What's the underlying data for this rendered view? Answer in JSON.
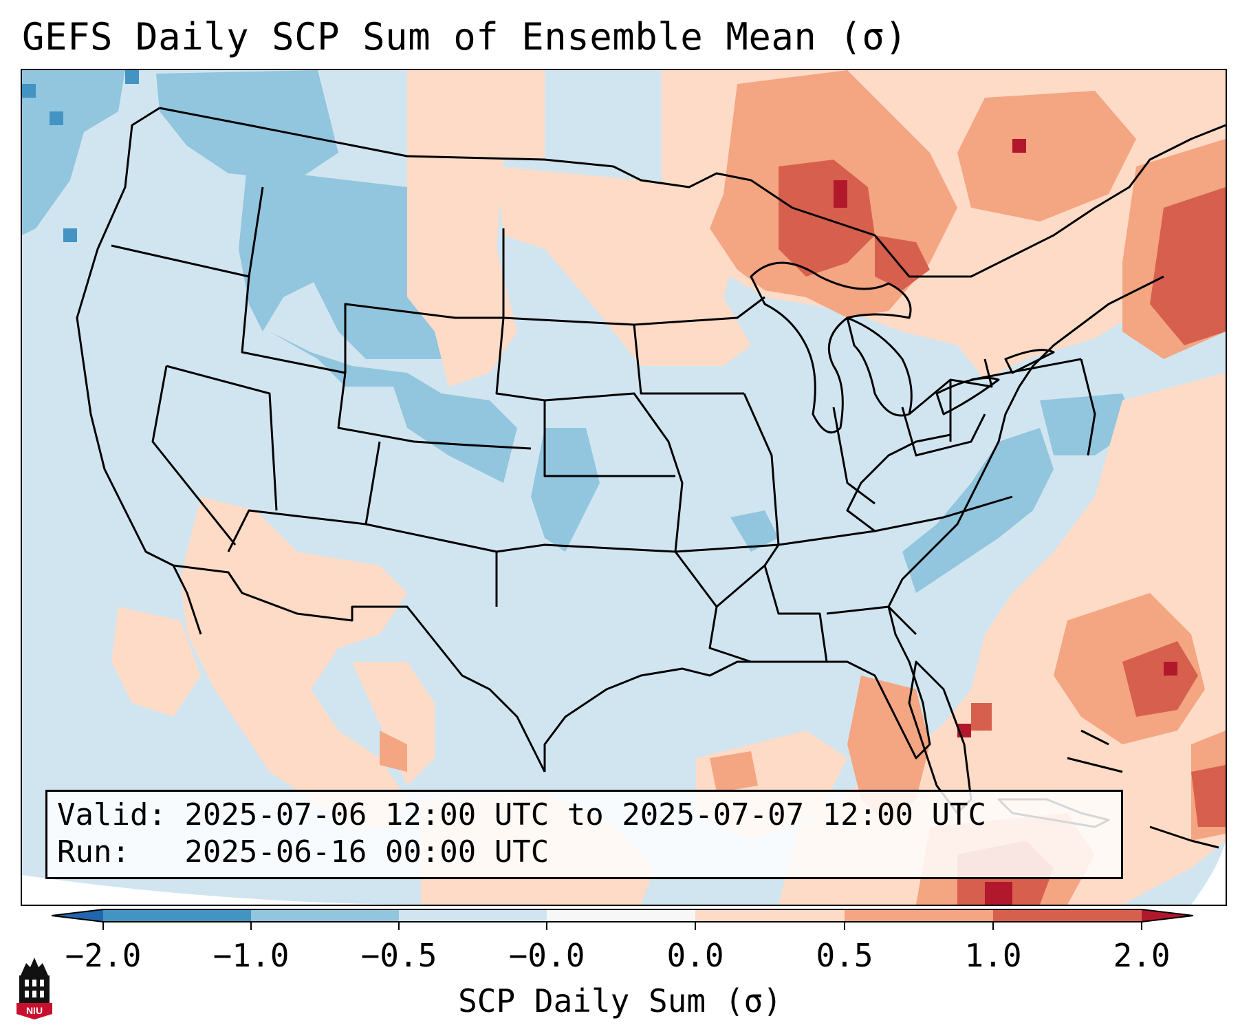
{
  "title": "GEFS Daily SCP Sum of Ensemble Mean (σ)",
  "valid_box": {
    "valid_line": "Valid: 2025-07-06 12:00 UTC to 2025-07-07 12:00 UTC",
    "run_line": "Run:   2025-06-16 00:00 UTC"
  },
  "colorbar": {
    "title": "SCP Daily Sum (σ)",
    "ticks": [
      "−2.0",
      "−1.0",
      "−0.5",
      "−0.0",
      "0.0",
      "0.5",
      "1.0",
      "2.0"
    ],
    "colors": {
      "under": "#2166ac",
      "bin_m2_m1": "#4393c3",
      "bin_m1_m05": "#92c5de",
      "bin_m05_m0": "#d1e5f0",
      "bin_m0_0": "#f7f7f7",
      "bin_0_05": "#fddbc7",
      "bin_05_1": "#f4a582",
      "bin_1_2": "#d6604d",
      "over": "#b2182b"
    }
  },
  "map": {
    "background_color": "#d1e5f0",
    "land_border_color": "#000000"
  },
  "logo": {
    "text": "NIU",
    "icon": "university-tower-icon"
  }
}
